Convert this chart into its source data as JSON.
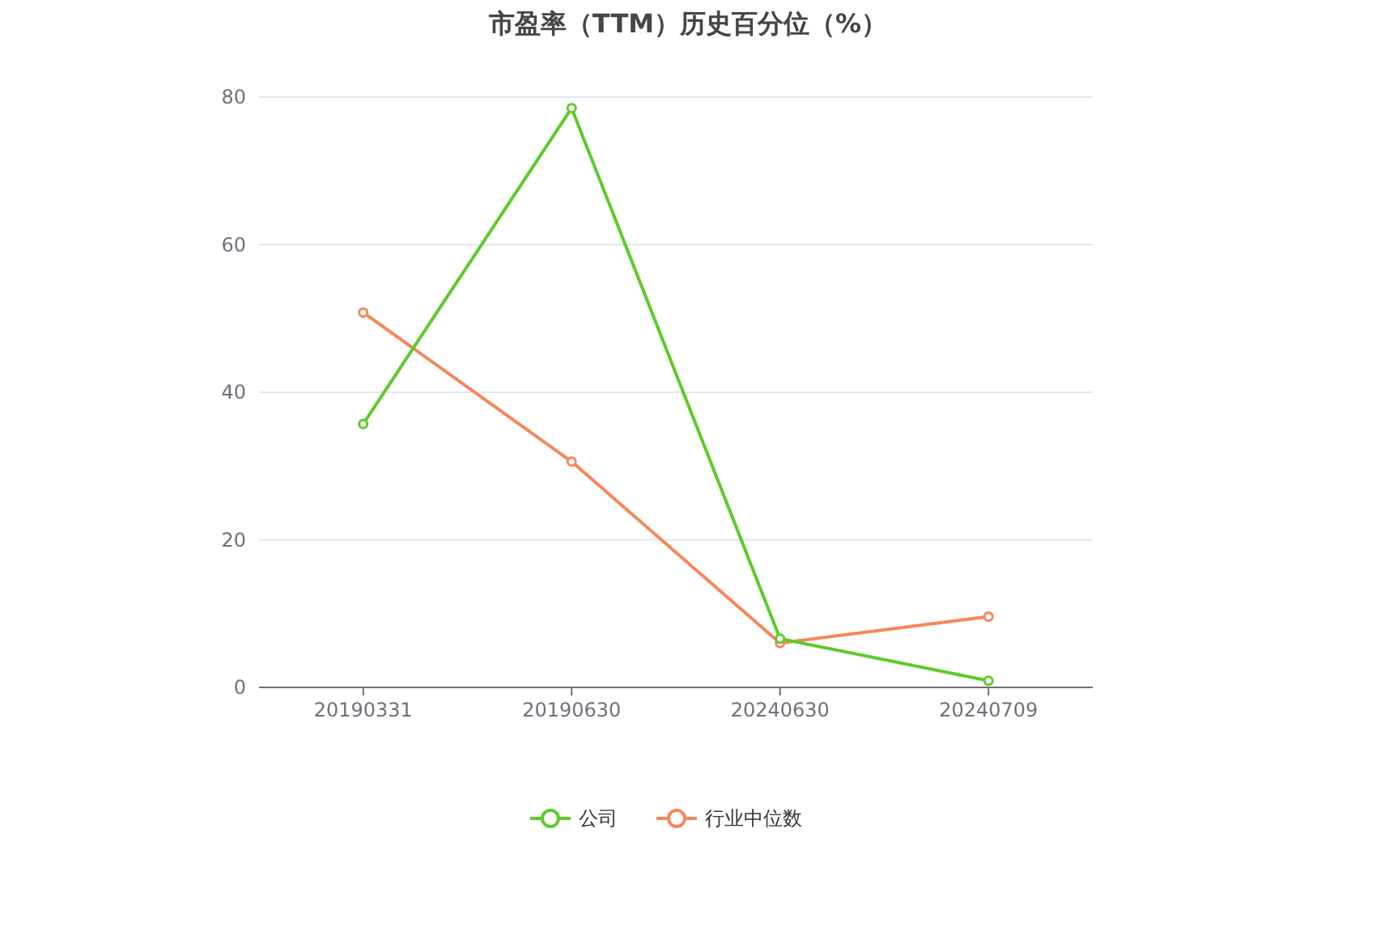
{
  "chart_data": {
    "type": "line",
    "title": "市盈率（TTM）历史百分位（%）",
    "categories": [
      "20190331",
      "20190630",
      "20240630",
      "20240709"
    ],
    "series": [
      {
        "name": "公司",
        "color": "#5ccb2a",
        "values": [
          35.7,
          78.5,
          6.6,
          0.9
        ]
      },
      {
        "name": "行业中位数",
        "color": "#f7865a",
        "values": [
          50.8,
          30.6,
          6.0,
          9.6
        ]
      }
    ],
    "ylim": [
      0,
      80
    ],
    "yticks": [
      0,
      20,
      40,
      60,
      80
    ],
    "grid": "y",
    "legend": "bottom",
    "marker": "circle",
    "line_style": "solid"
  }
}
